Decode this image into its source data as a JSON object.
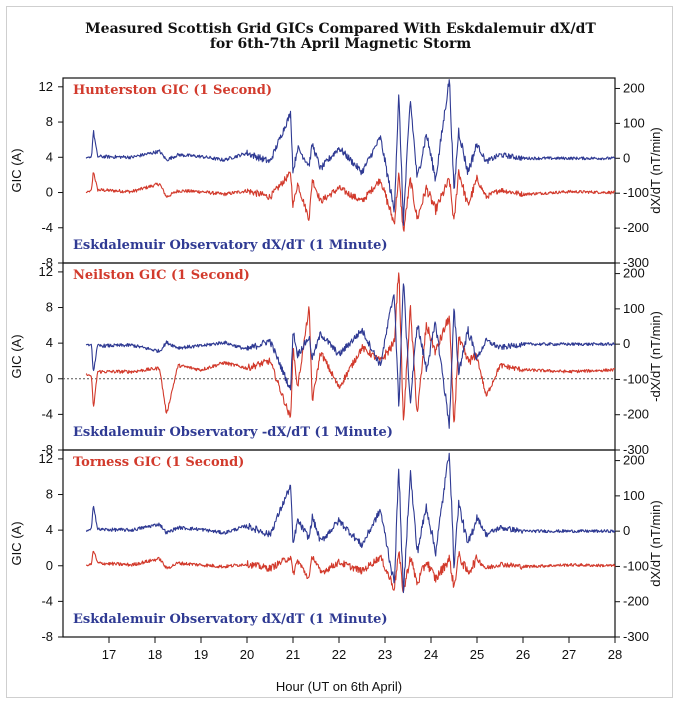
{
  "title_lines": [
    "Measured Scottish Grid GICs Compared With Eskdalemuir dX/dT",
    "for 6th-7th April Magnetic Storm"
  ],
  "colors": {
    "gic": "#d23a2c",
    "dxdt": "#2f3a93",
    "axis": "#111111"
  },
  "chart_data": [
    {
      "type": "line",
      "gic_label": "Hunterston GIC (1 Second)",
      "dxdt_label": "Eskdalemuir Observatory dX/dT (1 Minute)",
      "ylabel_left": "GIC (A)",
      "ylabel_right": "dX/dT (nT/min)",
      "yticks_left": [
        "12",
        "8",
        "4",
        "0",
        "-4",
        "-8"
      ],
      "yticks_right": [
        "200",
        "100",
        "0",
        "-100",
        "-200",
        "-300"
      ],
      "ylim_left": [
        -8,
        13
      ],
      "ylim_right": [
        -300,
        230
      ],
      "gic_zero_line": false,
      "series": [
        {
          "name": "Hunterston GIC (1 Second)",
          "axis": "left",
          "x": [
            16.5,
            16.62,
            16.66,
            16.75,
            17.5,
            18.1,
            18.25,
            18.5,
            19.0,
            19.5,
            20.0,
            20.5,
            20.95,
            21.0,
            21.1,
            21.35,
            21.42,
            21.6,
            22.0,
            22.5,
            22.9,
            23.2,
            23.3,
            23.4,
            23.55,
            23.7,
            23.9,
            24.1,
            24.4,
            24.5,
            24.6,
            24.8,
            25.0,
            25.2,
            25.5,
            26.0,
            27.0,
            28.0
          ],
          "y": [
            0,
            0.2,
            2.5,
            0.3,
            0.1,
            1.0,
            -0.5,
            0.2,
            0.1,
            -0.2,
            0.2,
            -0.5,
            2.2,
            -1.5,
            1.0,
            -3.0,
            1.5,
            -1.0,
            0.5,
            -1.0,
            1.5,
            -3.5,
            2.0,
            -4.5,
            1.5,
            -3.0,
            0.5,
            -2.0,
            1.5,
            -3.5,
            2.5,
            -1.5,
            1.5,
            -0.5,
            0.3,
            -0.2,
            0.1,
            0
          ]
        },
        {
          "name": "Eskdalemuir Observatory dX/dT (1 Minute)",
          "axis": "right",
          "x": [
            16.5,
            16.62,
            16.66,
            16.75,
            17.5,
            18.1,
            18.25,
            18.5,
            19.0,
            19.5,
            20.0,
            20.5,
            20.95,
            21.0,
            21.1,
            21.35,
            21.42,
            21.6,
            22.0,
            22.5,
            22.9,
            23.2,
            23.3,
            23.4,
            23.55,
            23.7,
            23.9,
            24.1,
            24.4,
            24.5,
            24.6,
            24.8,
            25.0,
            25.2,
            25.5,
            26.0,
            27.0,
            28.0
          ],
          "y": [
            0,
            5,
            80,
            5,
            3,
            20,
            -5,
            10,
            5,
            -5,
            15,
            -10,
            130,
            -40,
            30,
            -20,
            40,
            -30,
            30,
            -40,
            60,
            -150,
            180,
            -180,
            170,
            -60,
            70,
            -60,
            230,
            -100,
            80,
            -40,
            40,
            -10,
            10,
            0,
            0,
            0
          ]
        }
      ]
    },
    {
      "type": "line",
      "gic_label": "Neilston GIC (1 Second)",
      "dxdt_label": "Eskdalemuir Observatory -dX/dT (1 Minute)",
      "ylabel_left": "GIC (A)",
      "ylabel_right": "-dX/dT (nT/min)",
      "yticks_left": [
        "12",
        "8",
        "4",
        "0",
        "-4",
        "-8"
      ],
      "yticks_right": [
        "200",
        "100",
        "0",
        "-100",
        "-200",
        "-300"
      ],
      "ylim_left": [
        -8,
        13
      ],
      "ylim_right": [
        -300,
        230
      ],
      "gic_zero_line": true,
      "series": [
        {
          "name": "Neilston GIC (1 Second)",
          "axis": "left",
          "x": [
            16.5,
            16.62,
            16.66,
            16.75,
            17.5,
            18.1,
            18.25,
            18.5,
            19.0,
            19.5,
            20.0,
            20.5,
            20.95,
            21.0,
            21.1,
            21.35,
            21.42,
            21.6,
            22.0,
            22.5,
            22.9,
            23.2,
            23.3,
            23.4,
            23.55,
            23.7,
            23.9,
            24.1,
            24.4,
            24.5,
            24.6,
            24.8,
            25.0,
            25.2,
            25.5,
            26.0,
            27.0,
            28.0
          ],
          "y": [
            0.5,
            0.3,
            -3.5,
            0.8,
            0.8,
            1.2,
            -4.0,
            1.5,
            1.0,
            1.8,
            1.2,
            2.0,
            -4.5,
            3.5,
            -1.0,
            8.0,
            -2.5,
            3.0,
            -1.0,
            3.5,
            2.0,
            4.0,
            12.5,
            -5.0,
            8.0,
            -4.0,
            6.0,
            3.0,
            7.0,
            -5.5,
            4.5,
            2.0,
            2.5,
            -2.0,
            1.5,
            1.0,
            0.8,
            1.0
          ]
        },
        {
          "name": "Eskdalemuir Observatory -dX/dT (1 Minute)",
          "axis": "right",
          "x": [
            16.5,
            16.62,
            16.66,
            16.75,
            17.5,
            18.1,
            18.25,
            18.5,
            19.0,
            19.5,
            20.0,
            20.5,
            20.95,
            21.0,
            21.1,
            21.35,
            21.42,
            21.6,
            22.0,
            22.5,
            22.9,
            23.2,
            23.3,
            23.4,
            23.55,
            23.7,
            23.9,
            24.1,
            24.4,
            24.5,
            24.6,
            24.8,
            25.0,
            25.2,
            25.5,
            26.0,
            27.0,
            28.0
          ],
          "y": [
            0,
            -5,
            -80,
            -5,
            -3,
            -20,
            5,
            -10,
            -5,
            5,
            -15,
            10,
            -130,
            40,
            -30,
            20,
            -40,
            30,
            -30,
            40,
            -60,
            150,
            -180,
            180,
            -170,
            60,
            -70,
            60,
            -230,
            100,
            -80,
            40,
            -40,
            10,
            -10,
            0,
            0,
            0
          ]
        }
      ]
    },
    {
      "type": "line",
      "gic_label": "Torness GIC (1 Second)",
      "dxdt_label": "Eskdalemuir Observatory dX/dT (1 Minute)",
      "ylabel_left": "GIC (A)",
      "ylabel_right": "dX/dT (nT/min)",
      "yticks_left": [
        "12",
        "8",
        "4",
        "0",
        "-4",
        "-8"
      ],
      "yticks_right": [
        "200",
        "100",
        "0",
        "-100",
        "-200",
        "-300"
      ],
      "ylim_left": [
        -8,
        13
      ],
      "ylim_right": [
        -300,
        230
      ],
      "gic_zero_line": false,
      "series": [
        {
          "name": "Torness GIC (1 Second)",
          "axis": "left",
          "x": [
            16.5,
            16.62,
            16.66,
            16.75,
            17.5,
            18.1,
            18.25,
            18.5,
            19.0,
            19.5,
            20.0,
            20.5,
            20.95,
            21.0,
            21.1,
            21.35,
            21.42,
            21.6,
            22.0,
            22.5,
            22.9,
            23.2,
            23.3,
            23.4,
            23.55,
            23.7,
            23.9,
            24.1,
            24.4,
            24.5,
            24.6,
            24.8,
            25.0,
            25.2,
            25.5,
            26.0,
            27.0,
            28.0
          ],
          "y": [
            0,
            0.2,
            1.8,
            0.3,
            0.1,
            0.8,
            -0.3,
            0.3,
            0.1,
            -0.1,
            0.2,
            -0.3,
            1.0,
            -1.0,
            0.6,
            -1.5,
            1.2,
            -0.8,
            0.4,
            -0.6,
            1.0,
            -2.5,
            1.5,
            -3.0,
            1.0,
            -2.0,
            0.5,
            -1.5,
            0.8,
            -2.5,
            1.2,
            -0.8,
            0.8,
            -0.3,
            0.2,
            -0.1,
            0.1,
            0
          ]
        },
        {
          "name": "Eskdalemuir Observatory dX/dT (1 Minute)",
          "axis": "right",
          "x": [
            16.5,
            16.62,
            16.66,
            16.75,
            17.5,
            18.1,
            18.25,
            18.5,
            19.0,
            19.5,
            20.0,
            20.5,
            20.95,
            21.0,
            21.1,
            21.35,
            21.42,
            21.6,
            22.0,
            22.5,
            22.9,
            23.2,
            23.3,
            23.4,
            23.55,
            23.7,
            23.9,
            24.1,
            24.4,
            24.5,
            24.6,
            24.8,
            25.0,
            25.2,
            25.5,
            26.0,
            27.0,
            28.0
          ],
          "y": [
            0,
            5,
            80,
            5,
            3,
            20,
            -5,
            10,
            5,
            -5,
            15,
            -10,
            130,
            -40,
            30,
            -20,
            40,
            -30,
            30,
            -40,
            60,
            -150,
            180,
            -180,
            170,
            -60,
            70,
            -60,
            230,
            -100,
            80,
            -40,
            40,
            -10,
            10,
            0,
            0,
            0
          ]
        }
      ]
    }
  ],
  "x_axis": {
    "label": "Hour (UT on 6th April)",
    "xlim": [
      16,
      28
    ],
    "ticks": [
      17,
      18,
      19,
      20,
      21,
      22,
      23,
      24,
      25,
      26,
      27,
      28
    ]
  }
}
